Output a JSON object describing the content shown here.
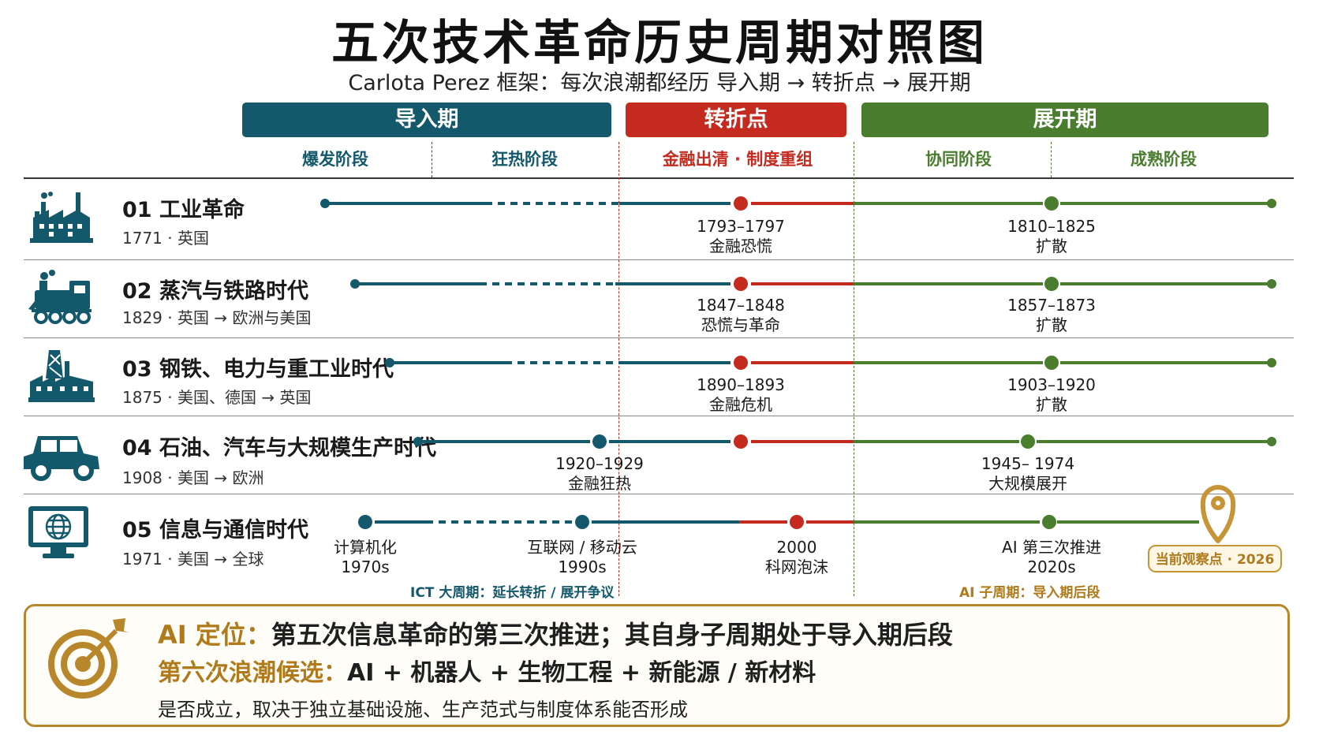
{
  "title": "五次技术革命历史周期对照图",
  "subtitle": "Carlota Perez 框架：每次浪潮都经历 导入期 → 转折点 → 展开期",
  "colors": {
    "teal": "#13586b",
    "red": "#c52a1f",
    "green": "#4a7d2e",
    "gold": "#b8862b"
  },
  "phases": [
    {
      "label": "导入期"
    },
    {
      "label": "转折点"
    },
    {
      "label": "展开期"
    }
  ],
  "stages": [
    "爆发阶段",
    "狂热阶段",
    "金融出清 · 制度重组",
    "协同阶段",
    "成熟阶段"
  ],
  "rows": [
    {
      "icon": "factory-icon",
      "name": "01 工业革命",
      "meta": "1771 · 英国",
      "labels": [
        {
          "t1": "1793–1797",
          "t2": "金融恐慌"
        },
        {
          "t1": "1810–1825",
          "t2": "扩散"
        }
      ]
    },
    {
      "icon": "train-icon",
      "name": "02 蒸汽与铁路时代",
      "meta": "1829 · 英国 → 欧洲与美国",
      "labels": [
        {
          "t1": "1847–1848",
          "t2": "恐慌与革命"
        },
        {
          "t1": "1857–1873",
          "t2": "扩散"
        }
      ]
    },
    {
      "icon": "steel-plant-icon",
      "name": "03 钢铁、电力与重工业时代",
      "meta": "1875 · 美国、德国 → 英国",
      "labels": [
        {
          "t1": "1890–1893",
          "t2": "金融危机"
        },
        {
          "t1": "1903–1920",
          "t2": "扩散"
        }
      ]
    },
    {
      "icon": "car-icon",
      "name": "04 石油、汽车与大规模生产时代",
      "meta": "1908 · 美国 → 欧洲",
      "labels": [
        {
          "t1": "1920–1929",
          "t2": "金融狂热"
        },
        {
          "t1": "1945– 1974",
          "t2": "大规模展开"
        }
      ]
    },
    {
      "icon": "computer-globe-icon",
      "name": "05 信息与通信时代",
      "meta": "1971 · 美国 → 全球",
      "labels": [
        {
          "t1": "计算机化",
          "t2": "1970s"
        },
        {
          "t1": "互联网 / 移动云",
          "t2": "1990s"
        },
        {
          "t1": "2000",
          "t2": "科网泡沫"
        },
        {
          "t1": "AI 第三次推进",
          "t2": "2020s"
        }
      ]
    }
  ],
  "ict_note": "ICT 大周期：延长转折 / 展开争议",
  "ai_note": "AI 子周期：导入期后段",
  "observation": "当前观察点 · 2026",
  "bottom": {
    "line1_prefix": "AI 定位：",
    "line1_text": "第五次信息革命的第三次推进；其自身子周期处于导入期后段",
    "line2_prefix": "第六次浪潮候选：",
    "line2_text": "AI + 机器人 + 生物工程 + 新能源 / 新材料",
    "line3": "是否成立，取决于独立基础设施、生产范式与制度体系能否形成"
  }
}
